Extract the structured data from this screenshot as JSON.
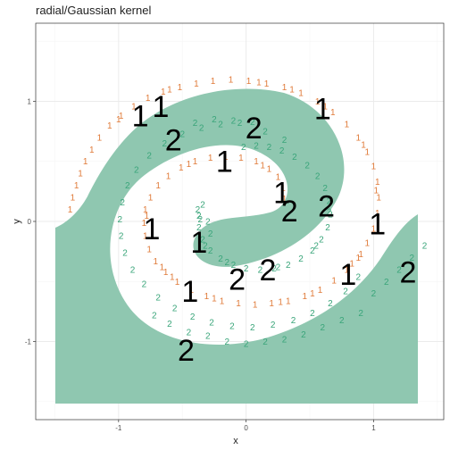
{
  "chart_data": {
    "type": "scatter",
    "title": "radial/Gaussian kernel",
    "xlabel": "x",
    "ylabel": "y",
    "xlim": [
      -1.65,
      1.55
    ],
    "ylim": [
      -1.65,
      1.65
    ],
    "xticks": [
      -1,
      0,
      1
    ],
    "yticks": [
      -1,
      0,
      1
    ],
    "xtick_labels": [
      "-1",
      "0",
      "1"
    ],
    "ytick_labels": [
      "-1",
      "0",
      "1"
    ],
    "grid": true,
    "colors": {
      "class1": "#e07b3a",
      "class2": "#3aa57a",
      "region2": "#8fc7b0",
      "panel_bg": "#ffffff",
      "grid_major": "#ebebeb",
      "grid_minor": "#f5f5f5",
      "panel_border": "#333333",
      "large_label": "#000000"
    },
    "region_label": "2",
    "series": [
      {
        "label": "1",
        "points": [
          [
            -1.38,
            0.1
          ],
          [
            -1.36,
            0.2
          ],
          [
            -1.33,
            0.3
          ],
          [
            -1.3,
            0.4
          ],
          [
            -1.26,
            0.5
          ],
          [
            -1.21,
            0.6
          ],
          [
            -1.15,
            0.7
          ],
          [
            -1.07,
            0.8
          ],
          [
            -0.98,
            0.88
          ],
          [
            -0.88,
            0.96
          ],
          [
            -0.77,
            1.03
          ],
          [
            -0.65,
            1.08
          ],
          [
            -0.52,
            1.12
          ],
          [
            -0.39,
            1.15
          ],
          [
            -0.26,
            1.17
          ],
          [
            -0.12,
            1.18
          ],
          [
            0.02,
            1.17
          ],
          [
            0.16,
            1.15
          ],
          [
            0.3,
            1.12
          ],
          [
            0.43,
            1.07
          ],
          [
            0.56,
            1.0
          ],
          [
            0.68,
            0.91
          ],
          [
            0.79,
            0.81
          ],
          [
            0.88,
            0.7
          ],
          [
            0.95,
            0.58
          ],
          [
            1.0,
            0.46
          ],
          [
            1.03,
            0.33
          ],
          [
            1.04,
            0.2
          ],
          [
            1.03,
            0.07
          ],
          [
            1.0,
            -0.06
          ],
          [
            0.95,
            -0.18
          ],
          [
            0.88,
            -0.3
          ],
          [
            0.79,
            -0.4
          ],
          [
            0.69,
            -0.49
          ],
          [
            0.58,
            -0.57
          ],
          [
            0.46,
            -0.62
          ],
          [
            0.33,
            -0.66
          ],
          [
            0.2,
            -0.68
          ],
          [
            0.07,
            -0.69
          ],
          [
            -0.06,
            -0.68
          ],
          [
            -0.19,
            -0.66
          ],
          [
            -0.31,
            -0.62
          ],
          [
            -0.43,
            -0.57
          ],
          [
            -0.54,
            -0.5
          ],
          [
            -0.63,
            -0.42
          ],
          [
            -0.71,
            -0.33
          ],
          [
            -0.76,
            -0.23
          ],
          [
            -0.79,
            -0.12
          ],
          [
            -0.8,
            -0.01
          ],
          [
            -0.79,
            0.1
          ],
          [
            -0.75,
            0.2
          ],
          [
            -0.69,
            0.3
          ],
          [
            -0.61,
            0.38
          ],
          [
            -0.51,
            0.45
          ],
          [
            -0.4,
            0.5
          ],
          [
            -0.28,
            0.53
          ],
          [
            -0.16,
            0.54
          ],
          [
            -0.04,
            0.53
          ],
          [
            0.08,
            0.5
          ],
          [
            0.18,
            0.44
          ],
          [
            0.25,
            0.37
          ],
          [
            0.29,
            0.28
          ],
          [
            0.3,
            0.19
          ],
          [
            -1.0,
            0.85
          ],
          [
            -0.6,
            1.1
          ],
          [
            0.1,
            1.16
          ],
          [
            0.62,
            0.96
          ],
          [
            0.92,
            0.64
          ],
          [
            1.02,
            0.26
          ],
          [
            0.9,
            -0.27
          ],
          [
            0.52,
            -0.6
          ],
          [
            -0.25,
            -0.64
          ],
          [
            -0.66,
            -0.38
          ],
          [
            -0.78,
            0.05
          ],
          [
            -0.45,
            0.48
          ],
          [
            0.13,
            0.47
          ],
          [
            0.83,
            -0.35
          ],
          [
            0.27,
            -0.67
          ],
          [
            -0.58,
            -0.46
          ],
          [
            0.36,
            1.1
          ]
        ]
      },
      {
        "label": "2",
        "points": [
          [
            -0.02,
            0.62
          ],
          [
            0.08,
            0.63
          ],
          [
            0.18,
            0.62
          ],
          [
            0.28,
            0.59
          ],
          [
            0.38,
            0.54
          ],
          [
            0.48,
            0.47
          ],
          [
            0.56,
            0.38
          ],
          [
            0.62,
            0.28
          ],
          [
            0.65,
            0.17
          ],
          [
            0.66,
            0.06
          ],
          [
            0.64,
            -0.05
          ],
          [
            0.59,
            -0.15
          ],
          [
            0.52,
            -0.24
          ],
          [
            0.43,
            -0.31
          ],
          [
            0.33,
            -0.36
          ],
          [
            0.22,
            -0.39
          ],
          [
            0.11,
            -0.4
          ],
          [
            0.0,
            -0.39
          ],
          [
            -0.1,
            -0.36
          ],
          [
            -0.2,
            -0.31
          ],
          [
            -0.28,
            -0.24
          ],
          [
            -0.34,
            -0.15
          ],
          [
            -0.37,
            -0.05
          ],
          [
            -0.37,
            0.05
          ],
          [
            -0.34,
            0.14
          ],
          [
            -0.3,
            0.0
          ],
          [
            -0.28,
            -0.1
          ],
          [
            -0.36,
            0.02
          ],
          [
            -0.05,
            0.82
          ],
          [
            -0.2,
            0.81
          ],
          [
            -0.35,
            0.78
          ],
          [
            -0.5,
            0.73
          ],
          [
            -0.64,
            0.65
          ],
          [
            -0.76,
            0.55
          ],
          [
            -0.86,
            0.43
          ],
          [
            -0.93,
            0.3
          ],
          [
            -0.97,
            0.16
          ],
          [
            -0.99,
            0.02
          ],
          [
            -0.98,
            -0.12
          ],
          [
            -0.95,
            -0.26
          ],
          [
            -0.89,
            -0.4
          ],
          [
            -0.8,
            -0.52
          ],
          [
            -0.69,
            -0.63
          ],
          [
            -0.56,
            -0.72
          ],
          [
            -0.42,
            -0.79
          ],
          [
            -0.27,
            -0.84
          ],
          [
            -0.11,
            -0.87
          ],
          [
            0.05,
            -0.88
          ],
          [
            0.21,
            -0.86
          ],
          [
            0.37,
            -0.82
          ],
          [
            0.52,
            -0.76
          ],
          [
            0.66,
            -0.68
          ],
          [
            0.78,
            -0.58
          ],
          [
            0.88,
            -0.46
          ],
          [
            1.0,
            -0.6
          ],
          [
            1.1,
            -0.5
          ],
          [
            1.2,
            -0.4
          ],
          [
            1.3,
            -0.3
          ],
          [
            1.4,
            -0.2
          ],
          [
            -0.25,
            0.85
          ],
          [
            -0.4,
            0.82
          ],
          [
            -0.1,
            0.84
          ],
          [
            0.05,
            0.83
          ],
          [
            0.15,
            0.75
          ],
          [
            0.3,
            0.68
          ],
          [
            -0.3,
            -0.95
          ],
          [
            -0.15,
            -1.0
          ],
          [
            0.0,
            -1.02
          ],
          [
            0.15,
            -1.0
          ],
          [
            0.3,
            -0.98
          ],
          [
            0.45,
            -0.94
          ],
          [
            0.6,
            -0.88
          ],
          [
            0.75,
            -0.82
          ],
          [
            0.9,
            -0.76
          ],
          [
            -0.45,
            -0.92
          ],
          [
            -0.6,
            -0.85
          ],
          [
            -0.72,
            -0.78
          ],
          [
            0.65,
            0.08
          ],
          [
            0.55,
            -0.2
          ],
          [
            0.25,
            -0.38
          ],
          [
            -0.15,
            -0.34
          ],
          [
            -0.32,
            -0.2
          ],
          [
            -0.38,
            0.1
          ]
        ]
      }
    ],
    "large_labels": [
      {
        "text": "1",
        "x": -0.83,
        "y": 0.88
      },
      {
        "text": "1",
        "x": -0.67,
        "y": 0.96
      },
      {
        "text": "2",
        "x": -0.57,
        "y": 0.68
      },
      {
        "text": "2",
        "x": 0.06,
        "y": 0.78
      },
      {
        "text": "1",
        "x": 0.6,
        "y": 0.94
      },
      {
        "text": "1",
        "x": -0.17,
        "y": 0.5
      },
      {
        "text": "1",
        "x": 0.28,
        "y": 0.24
      },
      {
        "text": "2",
        "x": 0.34,
        "y": 0.09
      },
      {
        "text": "2",
        "x": 0.63,
        "y": 0.13
      },
      {
        "text": "1",
        "x": 1.03,
        "y": -0.02
      },
      {
        "text": "1",
        "x": -0.74,
        "y": -0.06
      },
      {
        "text": "1",
        "x": -0.37,
        "y": -0.17
      },
      {
        "text": "2",
        "x": 0.17,
        "y": -0.4
      },
      {
        "text": "2",
        "x": -0.07,
        "y": -0.48
      },
      {
        "text": "1",
        "x": 0.8,
        "y": -0.44
      },
      {
        "text": "2",
        "x": 1.27,
        "y": -0.42
      },
      {
        "text": "1",
        "x": -0.44,
        "y": -0.58
      },
      {
        "text": "2",
        "x": -0.47,
        "y": -1.07
      }
    ]
  }
}
